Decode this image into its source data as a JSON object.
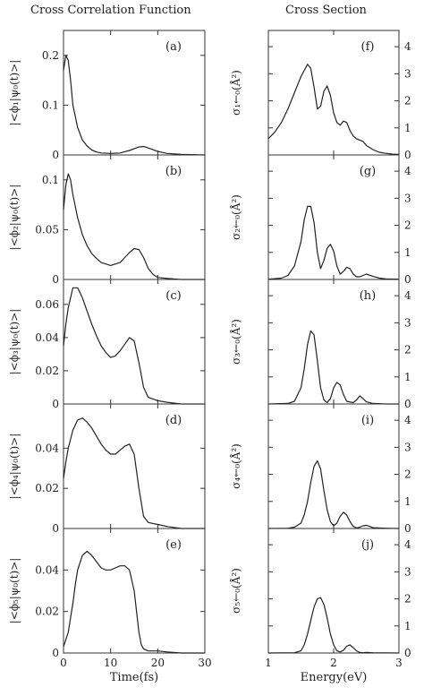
{
  "columns": {
    "left_title": "Cross Correlation Function",
    "right_title": "Cross Section"
  },
  "chart_data": [
    {
      "id": "a",
      "type": "line",
      "panel_label": "(a)",
      "ylabel": "|<ϕ₁|ψ₀(t)>|",
      "xlabel": "",
      "xlim": [
        0,
        30
      ],
      "ylim": [
        0,
        0.25
      ],
      "yticks": [
        "0",
        "0.1",
        "0.2"
      ],
      "xticks": [],
      "x": [
        0,
        0.5,
        1,
        1.5,
        2,
        3,
        4,
        5,
        6,
        7,
        8,
        10,
        12,
        14,
        16,
        17,
        18,
        20,
        22,
        25,
        30
      ],
      "y": [
        0.17,
        0.2,
        0.19,
        0.15,
        0.1,
        0.055,
        0.03,
        0.018,
        0.01,
        0.006,
        0.004,
        0.003,
        0.004,
        0.009,
        0.016,
        0.017,
        0.014,
        0.007,
        0.003,
        0.001,
        0
      ]
    },
    {
      "id": "b",
      "type": "line",
      "panel_label": "(b)",
      "ylabel": "|<ϕ₂|ψ₀(t)>|",
      "xlabel": "",
      "xlim": [
        0,
        30
      ],
      "ylim": [
        0,
        0.125
      ],
      "yticks": [
        "0",
        "0.05",
        "0.1"
      ],
      "xticks": [],
      "x": [
        0,
        0.5,
        1,
        1.5,
        2,
        3,
        4,
        5,
        6,
        7,
        8,
        10,
        12,
        14,
        15,
        16,
        17,
        18,
        19,
        20,
        22,
        25,
        30
      ],
      "y": [
        0.07,
        0.095,
        0.106,
        0.1,
        0.085,
        0.062,
        0.045,
        0.034,
        0.026,
        0.021,
        0.017,
        0.014,
        0.017,
        0.027,
        0.031,
        0.03,
        0.022,
        0.011,
        0.005,
        0.002,
        0.001,
        0,
        0
      ]
    },
    {
      "id": "c",
      "type": "line",
      "panel_label": "(c)",
      "ylabel": "|<ϕ₃|ψ₀(t)>|",
      "xlabel": "",
      "xlim": [
        0,
        30
      ],
      "ylim": [
        0,
        0.075
      ],
      "yticks": [
        "0",
        "0.02",
        "0.04",
        "0.06"
      ],
      "xticks": [],
      "x": [
        0,
        0.5,
        1,
        2,
        3,
        4,
        5,
        6,
        7,
        8,
        9,
        10,
        11,
        12,
        13,
        14,
        15,
        16,
        17,
        18,
        20,
        22,
        25,
        30
      ],
      "y": [
        0.035,
        0.048,
        0.058,
        0.07,
        0.07,
        0.064,
        0.056,
        0.048,
        0.041,
        0.035,
        0.031,
        0.028,
        0.029,
        0.032,
        0.036,
        0.04,
        0.038,
        0.025,
        0.01,
        0.004,
        0.002,
        0.001,
        0,
        0
      ]
    },
    {
      "id": "d",
      "type": "line",
      "panel_label": "(d)",
      "ylabel": "|<ϕ₄|ψ₀(t)>|",
      "xlabel": "",
      "xlim": [
        0,
        30
      ],
      "ylim": [
        0,
        0.062
      ],
      "yticks": [
        "0",
        "0.02",
        "0.04"
      ],
      "xticks": [],
      "x": [
        0,
        0.5,
        1,
        2,
        3,
        4,
        5,
        6,
        7,
        8,
        9,
        10,
        11,
        12,
        13,
        14,
        15,
        16,
        17,
        18,
        20,
        22,
        25,
        30
      ],
      "y": [
        0.025,
        0.033,
        0.04,
        0.049,
        0.054,
        0.055,
        0.053,
        0.05,
        0.046,
        0.042,
        0.039,
        0.037,
        0.037,
        0.039,
        0.041,
        0.042,
        0.037,
        0.02,
        0.006,
        0.003,
        0.002,
        0.001,
        0,
        0
      ]
    },
    {
      "id": "e",
      "type": "line",
      "panel_label": "(e)",
      "ylabel": "|<ϕ₅|ψ₀(t)>|",
      "xlabel": "Time(fs)",
      "xlim": [
        0,
        30
      ],
      "ylim": [
        0,
        0.06
      ],
      "yticks": [
        "0",
        "0.02",
        "0.04"
      ],
      "xticks": [
        "0",
        "10",
        "20",
        "30"
      ],
      "x": [
        0,
        1,
        2,
        2.5,
        3,
        4,
        5,
        6,
        7,
        8,
        9,
        10,
        11,
        12,
        13,
        14,
        15,
        16,
        16.5,
        17,
        18,
        20,
        22,
        25,
        30
      ],
      "y": [
        0.003,
        0.01,
        0.024,
        0.033,
        0.04,
        0.047,
        0.049,
        0.047,
        0.044,
        0.041,
        0.04,
        0.04,
        0.041,
        0.042,
        0.042,
        0.04,
        0.03,
        0.01,
        0.004,
        0.002,
        0.001,
        0.001,
        0.0005,
        0,
        0
      ]
    },
    {
      "id": "f",
      "type": "line",
      "panel_label": "(f)",
      "ylabel": "σ₁←₀(Å²)",
      "xlabel": "",
      "xlim": [
        1,
        3
      ],
      "ylim": [
        0,
        4.6
      ],
      "yticks": [
        "0",
        "1",
        "2",
        "3",
        "4"
      ],
      "xticks": [],
      "x": [
        1,
        1.1,
        1.2,
        1.3,
        1.4,
        1.5,
        1.6,
        1.65,
        1.7,
        1.75,
        1.8,
        1.85,
        1.9,
        1.95,
        2.0,
        2.05,
        2.1,
        2.15,
        2.2,
        2.25,
        2.3,
        2.35,
        2.4,
        2.45,
        2.5,
        2.6,
        2.7,
        2.8,
        2.9,
        3.0
      ],
      "y": [
        0.6,
        0.85,
        1.2,
        1.7,
        2.3,
        2.9,
        3.35,
        3.2,
        2.5,
        1.7,
        1.8,
        2.35,
        2.55,
        2.2,
        1.55,
        1.2,
        1.1,
        1.25,
        1.2,
        0.9,
        0.7,
        0.6,
        0.55,
        0.5,
        0.35,
        0.2,
        0.1,
        0.06,
        0.03,
        0.02
      ]
    },
    {
      "id": "g",
      "type": "line",
      "panel_label": "(g)",
      "ylabel": "σ₂←₀(Å²)",
      "xlabel": "",
      "xlim": [
        1,
        3
      ],
      "ylim": [
        0,
        4.6
      ],
      "yticks": [
        "0",
        "1",
        "2",
        "3",
        "4"
      ],
      "xticks": [],
      "x": [
        1,
        1.2,
        1.3,
        1.4,
        1.5,
        1.55,
        1.6,
        1.65,
        1.7,
        1.75,
        1.8,
        1.85,
        1.9,
        1.95,
        2.0,
        2.05,
        2.1,
        2.15,
        2.2,
        2.25,
        2.3,
        2.35,
        2.4,
        2.5,
        2.6,
        2.7,
        2.8,
        3.0
      ],
      "y": [
        0.01,
        0.05,
        0.15,
        0.5,
        1.4,
        2.2,
        2.7,
        2.7,
        2.1,
        1.0,
        0.4,
        0.7,
        1.15,
        1.3,
        1.05,
        0.5,
        0.2,
        0.3,
        0.45,
        0.4,
        0.2,
        0.1,
        0.1,
        0.2,
        0.12,
        0.05,
        0.02,
        0.01
      ]
    },
    {
      "id": "h",
      "type": "line",
      "panel_label": "(h)",
      "ylabel": "σ₃←₀(Å²)",
      "xlabel": "",
      "xlim": [
        1,
        3
      ],
      "ylim": [
        0,
        4.6
      ],
      "yticks": [
        "0",
        "1",
        "2",
        "3",
        "4"
      ],
      "xticks": [],
      "x": [
        1,
        1.3,
        1.4,
        1.5,
        1.55,
        1.6,
        1.65,
        1.7,
        1.75,
        1.8,
        1.85,
        1.9,
        1.95,
        2.0,
        2.05,
        2.1,
        2.15,
        2.2,
        2.3,
        2.35,
        2.4,
        2.45,
        2.5,
        2.6,
        2.8,
        3.0
      ],
      "y": [
        0,
        0.02,
        0.1,
        0.6,
        1.3,
        2.2,
        2.7,
        2.55,
        1.6,
        0.6,
        0.15,
        0.05,
        0.2,
        0.6,
        0.8,
        0.7,
        0.35,
        0.1,
        0.05,
        0.15,
        0.3,
        0.2,
        0.08,
        0.02,
        0,
        0
      ]
    },
    {
      "id": "i",
      "type": "line",
      "panel_label": "(i)",
      "ylabel": "σ₄←₀(Å²)",
      "xlabel": "",
      "xlim": [
        1,
        3
      ],
      "ylim": [
        0,
        4.6
      ],
      "yticks": [
        "0",
        "1",
        "2",
        "3",
        "4"
      ],
      "xticks": [],
      "x": [
        1,
        1.3,
        1.4,
        1.5,
        1.55,
        1.6,
        1.65,
        1.7,
        1.75,
        1.8,
        1.85,
        1.9,
        1.95,
        2.0,
        2.05,
        2.1,
        2.15,
        2.2,
        2.25,
        2.3,
        2.35,
        2.4,
        2.45,
        2.5,
        2.55,
        2.6,
        2.8,
        3.0
      ],
      "y": [
        0,
        0.01,
        0.05,
        0.2,
        0.5,
        1.0,
        1.7,
        2.3,
        2.5,
        2.2,
        1.4,
        0.7,
        0.25,
        0.1,
        0.2,
        0.45,
        0.6,
        0.5,
        0.25,
        0.08,
        0.02,
        0.05,
        0.1,
        0.12,
        0.08,
        0.03,
        0.01,
        0
      ]
    },
    {
      "id": "j",
      "type": "line",
      "panel_label": "(j)",
      "ylabel": "σ₅←₀(Å²)",
      "xlabel": "Energy(eV)",
      "xlim": [
        1,
        3
      ],
      "ylim": [
        0,
        4.6
      ],
      "yticks": [
        "0",
        "1",
        "2",
        "3",
        "4"
      ],
      "xticks": [
        "1",
        "2",
        "3"
      ],
      "x": [
        1,
        1.4,
        1.5,
        1.55,
        1.6,
        1.65,
        1.7,
        1.75,
        1.8,
        1.85,
        1.9,
        1.95,
        2.0,
        2.05,
        2.1,
        2.15,
        2.2,
        2.25,
        2.3,
        2.35,
        2.4,
        2.45,
        2.5,
        2.6,
        3.0
      ],
      "y": [
        0,
        0.01,
        0.08,
        0.3,
        0.7,
        1.2,
        1.7,
        2.0,
        2.05,
        1.8,
        1.3,
        0.7,
        0.3,
        0.08,
        0.04,
        0.1,
        0.25,
        0.3,
        0.2,
        0.08,
        0.02,
        0.01,
        0.02,
        0.01,
        0
      ]
    }
  ]
}
